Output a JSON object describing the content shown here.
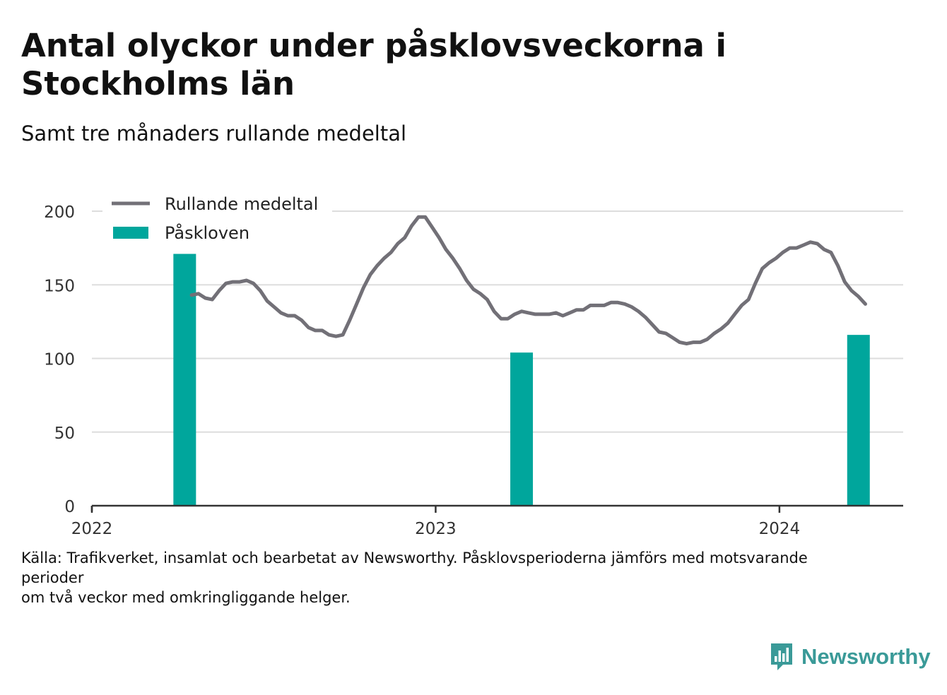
{
  "header": {
    "title": "Antal olyckor under påsklovsveckorna i Stockholms län",
    "subtitle": "Samt tre månaders rullande medeltal"
  },
  "footer": {
    "source_line1": "Källa: Trafikverket, insamlat och bearbetat av Newsworthy. Påsklovsperioderna jämförs med motsvarande perioder",
    "source_line2": "om två veckor med omkringliggande helger."
  },
  "brand": {
    "name": "Newsworthy",
    "color": "#3a9a98"
  },
  "colors": {
    "line": "#727077",
    "bar": "#00a69c",
    "grid": "#dddddd",
    "axis": "#333333"
  },
  "chart_data": {
    "type": "bar+line",
    "title": "Antal olyckor under påsklovsveckorna i Stockholms län",
    "subtitle": "Samt tre månaders rullande medeltal",
    "ylim": [
      0,
      200
    ],
    "yticks": [
      0,
      50,
      100,
      150,
      200
    ],
    "xlim": [
      2022.0,
      2024.36
    ],
    "xticks": [
      2022,
      2023,
      2024
    ],
    "xticklabels": [
      "2022",
      "2023",
      "2024"
    ],
    "grid": true,
    "legend": {
      "placement": "top-left",
      "items": [
        {
          "label": "Rullande medeltal",
          "kind": "line"
        },
        {
          "label": "Påskloven",
          "kind": "bar"
        }
      ]
    },
    "series": [
      {
        "name": "Påskloven",
        "type": "bar",
        "x": [
          2022.27,
          2023.25,
          2024.23
        ],
        "values": [
          171,
          104,
          116
        ]
      },
      {
        "name": "Rullande medeltal",
        "type": "line",
        "x": [
          2022.29,
          2022.31,
          2022.33,
          2022.35,
          2022.37,
          2022.39,
          2022.41,
          2022.43,
          2022.45,
          2022.47,
          2022.49,
          2022.51,
          2022.53,
          2022.55,
          2022.57,
          2022.59,
          2022.61,
          2022.63,
          2022.65,
          2022.67,
          2022.69,
          2022.71,
          2022.73,
          2022.75,
          2022.77,
          2022.79,
          2022.81,
          2022.83,
          2022.85,
          2022.87,
          2022.89,
          2022.91,
          2022.93,
          2022.95,
          2022.97,
          2022.99,
          2023.01,
          2023.03,
          2023.05,
          2023.07,
          2023.09,
          2023.11,
          2023.13,
          2023.15,
          2023.17,
          2023.19,
          2023.21,
          2023.23,
          2023.25,
          2023.27,
          2023.29,
          2023.31,
          2023.33,
          2023.35,
          2023.37,
          2023.39,
          2023.41,
          2023.43,
          2023.45,
          2023.47,
          2023.49,
          2023.51,
          2023.53,
          2023.55,
          2023.57,
          2023.59,
          2023.61,
          2023.63,
          2023.65,
          2023.67,
          2023.69,
          2023.71,
          2023.73,
          2023.75,
          2023.77,
          2023.79,
          2023.81,
          2023.83,
          2023.85,
          2023.87,
          2023.89,
          2023.91,
          2023.93,
          2023.95,
          2023.97,
          2023.99,
          2024.01,
          2024.03,
          2024.05,
          2024.07,
          2024.09,
          2024.11,
          2024.13,
          2024.15,
          2024.17,
          2024.19,
          2024.21,
          2024.23,
          2024.25
        ],
        "values": [
          143,
          144,
          141,
          140,
          146,
          151,
          152,
          152,
          153,
          151,
          146,
          139,
          135,
          131,
          129,
          129,
          126,
          121,
          119,
          119,
          116,
          115,
          116,
          126,
          137,
          148,
          157,
          163,
          168,
          172,
          178,
          182,
          190,
          196,
          196,
          189,
          182,
          174,
          168,
          161,
          153,
          147,
          144,
          140,
          132,
          127,
          127,
          130,
          132,
          131,
          130,
          130,
          130,
          131,
          129,
          131,
          133,
          133,
          136,
          136,
          136,
          138,
          138,
          137,
          135,
          132,
          128,
          123,
          118,
          117,
          114,
          111,
          110,
          111,
          111,
          113,
          117,
          120,
          124,
          130,
          136,
          140,
          151,
          161,
          165,
          168,
          172,
          175,
          175,
          177,
          179,
          178,
          174,
          172,
          163,
          152,
          146,
          142,
          137
        ]
      }
    ],
    "source": "Källa: Trafikverket, insamlat och bearbetat av Newsworthy. Påsklovsperioderna jämförs med motsvarande perioder om två veckor med omkringliggande helger."
  }
}
